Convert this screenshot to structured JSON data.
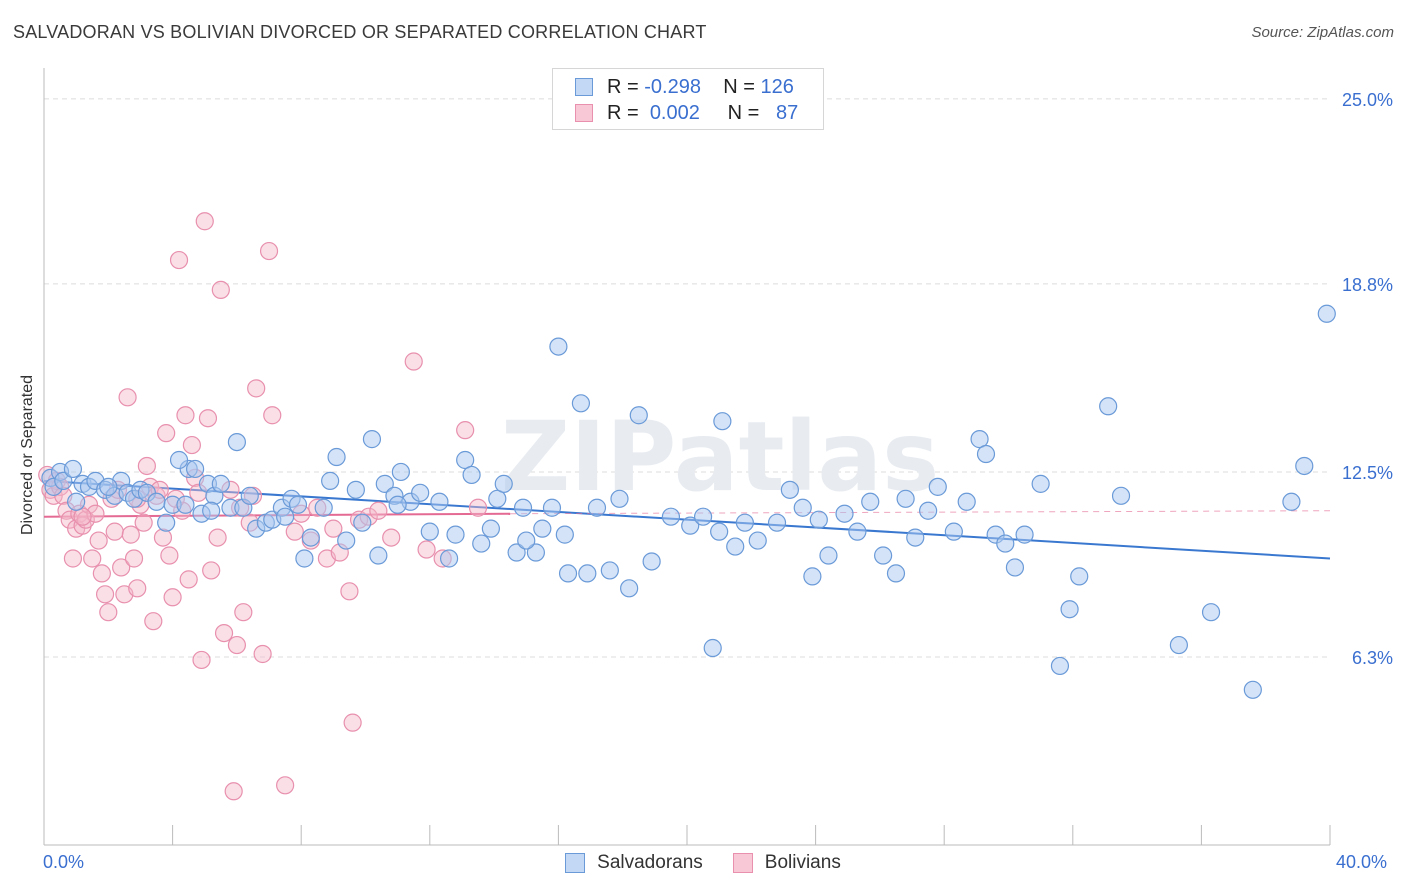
{
  "header": {
    "title": "SALVADORAN VS BOLIVIAN DIVORCED OR SEPARATED CORRELATION CHART",
    "source": "Source: ZipAtlas.com"
  },
  "legend": {
    "rows": [
      {
        "r_label": "R =",
        "r_value": "-0.298",
        "n_label": "N =",
        "n_value": "126"
      },
      {
        "r_label": "R =",
        "r_value": "0.002",
        "n_label": "N =",
        "n_value": "87"
      }
    ]
  },
  "colors": {
    "blue_fill": "#a9c8f0",
    "blue_stroke": "#6a9ad8",
    "blue_line": "#3a78d0",
    "pink_fill": "#f5b8ca",
    "pink_stroke": "#e890ad",
    "pink_line": "#e46a94",
    "grid": "#dcdcdc",
    "tick_label": "#3a6fd0"
  },
  "chart_data": {
    "type": "scatter",
    "title": "SALVADORAN VS BOLIVIAN DIVORCED OR SEPARATED CORRELATION CHART",
    "xlabel": "",
    "ylabel": "Divorced or Separated",
    "xlim": [
      0,
      40
    ],
    "ylim": [
      0,
      25.8
    ],
    "x_tick_labels": [
      "0.0%",
      "40.0%"
    ],
    "y_ticks": [
      6.3,
      12.5,
      18.8,
      25.0
    ],
    "y_tick_labels": [
      "6.3%",
      "12.5%",
      "18.8%",
      "25.0%"
    ],
    "grid": true,
    "legend_position": "top-center",
    "watermark": "ZIPatlas",
    "series": [
      {
        "name": "Salvadorans",
        "color": "#a9c8f0",
        "trend": {
          "x": [
            0,
            40
          ],
          "y": [
            12.2,
            9.6
          ]
        },
        "points": [
          [
            0.2,
            12.3
          ],
          [
            0.3,
            12.0
          ],
          [
            0.5,
            12.5
          ],
          [
            0.6,
            12.2
          ],
          [
            0.9,
            12.6
          ],
          [
            1.2,
            12.1
          ],
          [
            1.4,
            12.0
          ],
          [
            1.6,
            12.2
          ],
          [
            1.9,
            11.9
          ],
          [
            2.2,
            11.7
          ],
          [
            2.4,
            12.2
          ],
          [
            2.6,
            11.8
          ],
          [
            2.8,
            11.6
          ],
          [
            3.0,
            11.9
          ],
          [
            3.2,
            11.8
          ],
          [
            3.5,
            11.5
          ],
          [
            3.8,
            10.8
          ],
          [
            4.0,
            11.4
          ],
          [
            4.4,
            11.4
          ],
          [
            4.5,
            12.6
          ],
          [
            4.7,
            12.6
          ],
          [
            4.9,
            11.1
          ],
          [
            5.1,
            12.1
          ],
          [
            5.3,
            11.7
          ],
          [
            5.5,
            12.1
          ],
          [
            5.8,
            11.3
          ],
          [
            6.0,
            13.5
          ],
          [
            6.2,
            11.3
          ],
          [
            6.4,
            11.7
          ],
          [
            6.6,
            10.6
          ],
          [
            6.9,
            10.8
          ],
          [
            7.1,
            10.9
          ],
          [
            7.4,
            11.3
          ],
          [
            7.7,
            11.6
          ],
          [
            7.9,
            11.4
          ],
          [
            8.1,
            9.6
          ],
          [
            8.3,
            10.3
          ],
          [
            8.7,
            11.3
          ],
          [
            8.9,
            12.2
          ],
          [
            9.1,
            13.0
          ],
          [
            9.4,
            10.2
          ],
          [
            9.7,
            11.9
          ],
          [
            9.9,
            10.8
          ],
          [
            10.2,
            13.6
          ],
          [
            10.4,
            9.7
          ],
          [
            10.6,
            12.1
          ],
          [
            10.9,
            11.7
          ],
          [
            11.1,
            12.5
          ],
          [
            11.4,
            11.5
          ],
          [
            11.7,
            11.8
          ],
          [
            12.0,
            10.5
          ],
          [
            12.3,
            11.5
          ],
          [
            12.6,
            9.6
          ],
          [
            12.8,
            10.4
          ],
          [
            13.1,
            12.9
          ],
          [
            13.3,
            12.4
          ],
          [
            13.6,
            10.1
          ],
          [
            13.9,
            10.6
          ],
          [
            14.1,
            11.6
          ],
          [
            14.3,
            12.1
          ],
          [
            14.7,
            9.8
          ],
          [
            14.9,
            11.3
          ],
          [
            15.3,
            9.8
          ],
          [
            15.5,
            10.6
          ],
          [
            15.8,
            11.3
          ],
          [
            16.2,
            10.4
          ],
          [
            16.3,
            9.1
          ],
          [
            16.7,
            14.8
          ],
          [
            16.9,
            9.1
          ],
          [
            17.2,
            11.3
          ],
          [
            17.6,
            9.2
          ],
          [
            17.9,
            11.6
          ],
          [
            18.2,
            8.6
          ],
          [
            18.5,
            14.4
          ],
          [
            18.9,
            9.5
          ],
          [
            19.5,
            11.0
          ],
          [
            20.1,
            10.7
          ],
          [
            20.5,
            11.0
          ],
          [
            20.8,
            6.6
          ],
          [
            21.1,
            14.2
          ],
          [
            21.5,
            10.0
          ],
          [
            21.8,
            10.8
          ],
          [
            22.2,
            10.2
          ],
          [
            22.8,
            10.8
          ],
          [
            23.2,
            11.9
          ],
          [
            23.6,
            11.3
          ],
          [
            23.9,
            9.0
          ],
          [
            24.1,
            10.9
          ],
          [
            24.4,
            9.7
          ],
          [
            24.9,
            11.1
          ],
          [
            25.3,
            10.5
          ],
          [
            25.7,
            11.5
          ],
          [
            26.1,
            9.7
          ],
          [
            26.5,
            9.1
          ],
          [
            26.8,
            11.6
          ],
          [
            27.1,
            10.3
          ],
          [
            27.8,
            12.0
          ],
          [
            28.3,
            10.5
          ],
          [
            28.7,
            11.5
          ],
          [
            29.1,
            13.6
          ],
          [
            29.3,
            13.1
          ],
          [
            29.6,
            10.4
          ],
          [
            29.9,
            10.1
          ],
          [
            30.2,
            9.3
          ],
          [
            30.5,
            10.4
          ],
          [
            31.6,
            6.0
          ],
          [
            31.9,
            7.9
          ],
          [
            32.2,
            9.0
          ],
          [
            33.1,
            14.7
          ],
          [
            33.5,
            11.7
          ],
          [
            35.3,
            6.7
          ],
          [
            36.3,
            7.8
          ],
          [
            37.6,
            5.2
          ],
          [
            38.8,
            11.5
          ],
          [
            39.2,
            12.7
          ],
          [
            39.9,
            17.8
          ],
          [
            1.0,
            11.5
          ],
          [
            2.0,
            12.0
          ],
          [
            4.2,
            12.9
          ],
          [
            5.2,
            11.2
          ],
          [
            7.5,
            11.0
          ],
          [
            11.0,
            11.4
          ],
          [
            15.0,
            10.2
          ],
          [
            16.0,
            16.7
          ],
          [
            21.0,
            10.5
          ],
          [
            27.5,
            11.2
          ],
          [
            31.0,
            12.1
          ]
        ]
      },
      {
        "name": "Bolivians",
        "color": "#f5b8ca",
        "trend": {
          "x": [
            0,
            14.5
          ],
          "y": [
            11.0,
            11.1
          ],
          "dashed_extension": {
            "x": [
              14.5,
              40
            ],
            "y": [
              11.1,
              11.2
            ]
          }
        },
        "points": [
          [
            0.1,
            12.4
          ],
          [
            0.2,
            11.9
          ],
          [
            0.3,
            11.7
          ],
          [
            0.4,
            12.2
          ],
          [
            0.5,
            12.0
          ],
          [
            0.6,
            11.7
          ],
          [
            0.7,
            11.2
          ],
          [
            0.8,
            10.9
          ],
          [
            0.9,
            9.6
          ],
          [
            1.0,
            10.6
          ],
          [
            1.1,
            11.1
          ],
          [
            1.2,
            10.7
          ],
          [
            1.3,
            10.9
          ],
          [
            1.4,
            11.4
          ],
          [
            1.5,
            9.6
          ],
          [
            1.6,
            11.1
          ],
          [
            1.7,
            10.2
          ],
          [
            1.8,
            9.1
          ],
          [
            1.9,
            8.4
          ],
          [
            2.0,
            7.8
          ],
          [
            2.1,
            11.6
          ],
          [
            2.2,
            10.5
          ],
          [
            2.3,
            11.9
          ],
          [
            2.4,
            9.3
          ],
          [
            2.5,
            8.4
          ],
          [
            2.6,
            15.0
          ],
          [
            2.7,
            10.4
          ],
          [
            2.8,
            9.6
          ],
          [
            2.9,
            8.6
          ],
          [
            3.0,
            11.4
          ],
          [
            3.1,
            10.8
          ],
          [
            3.2,
            12.7
          ],
          [
            3.3,
            12.0
          ],
          [
            3.4,
            7.5
          ],
          [
            3.5,
            11.7
          ],
          [
            3.6,
            11.9
          ],
          [
            3.7,
            10.3
          ],
          [
            3.8,
            13.8
          ],
          [
            3.9,
            9.7
          ],
          [
            4.0,
            8.3
          ],
          [
            4.2,
            19.6
          ],
          [
            4.3,
            11.2
          ],
          [
            4.4,
            14.4
          ],
          [
            4.5,
            8.9
          ],
          [
            4.6,
            13.4
          ],
          [
            4.7,
            12.3
          ],
          [
            4.8,
            11.8
          ],
          [
            4.9,
            6.2
          ],
          [
            5.0,
            20.9
          ],
          [
            5.1,
            14.3
          ],
          [
            5.2,
            9.2
          ],
          [
            5.4,
            10.3
          ],
          [
            5.5,
            18.6
          ],
          [
            5.6,
            7.1
          ],
          [
            5.8,
            11.9
          ],
          [
            5.9,
            1.8
          ],
          [
            6.0,
            6.7
          ],
          [
            6.1,
            11.3
          ],
          [
            6.2,
            7.8
          ],
          [
            6.4,
            10.8
          ],
          [
            6.5,
            11.7
          ],
          [
            6.6,
            15.3
          ],
          [
            6.8,
            6.4
          ],
          [
            7.0,
            19.9
          ],
          [
            7.1,
            14.4
          ],
          [
            7.5,
            2.0
          ],
          [
            7.8,
            10.5
          ],
          [
            8.0,
            11.1
          ],
          [
            8.3,
            10.2
          ],
          [
            8.5,
            11.3
          ],
          [
            8.8,
            9.6
          ],
          [
            9.0,
            10.6
          ],
          [
            9.2,
            9.8
          ],
          [
            9.5,
            8.5
          ],
          [
            9.6,
            4.1
          ],
          [
            9.8,
            10.9
          ],
          [
            10.1,
            11.0
          ],
          [
            10.4,
            11.2
          ],
          [
            10.8,
            10.3
          ],
          [
            11.5,
            16.2
          ],
          [
            11.9,
            9.9
          ],
          [
            12.4,
            9.6
          ],
          [
            13.1,
            13.9
          ],
          [
            13.5,
            11.3
          ],
          [
            1.2,
            11.0
          ],
          [
            2.9,
            11.6
          ],
          [
            4.1,
            11.6
          ]
        ]
      }
    ]
  },
  "bottom_legend": {
    "items": [
      {
        "label": "Salvadorans"
      },
      {
        "label": "Bolivians"
      }
    ]
  }
}
